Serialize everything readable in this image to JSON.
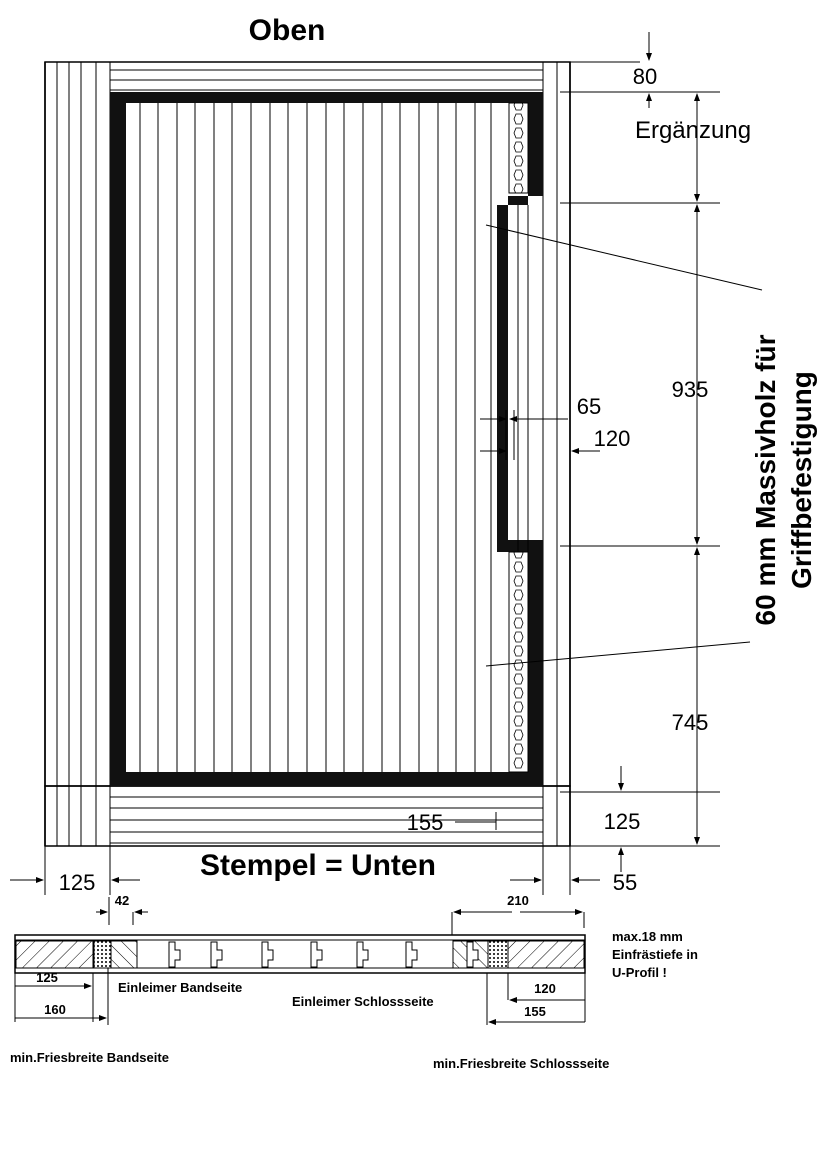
{
  "labels": {
    "top": "Oben",
    "bottom": "Stempel = Unten",
    "ergaenzung": "Ergänzung",
    "massivholz_line1": "60 mm Massivholz für",
    "massivholz_line2": "Griffbefestigung"
  },
  "dimensions": {
    "top_rail": "80",
    "height_upper": "935",
    "height_lower": "745",
    "bottom_rail": "125",
    "inner_width_65": "65",
    "inner_width_120": "120",
    "bottom_offset_155": "155",
    "left_stile": "125",
    "right_stile": "55"
  },
  "section": {
    "dim_42": "42",
    "dim_210": "210",
    "dim_125": "125",
    "dim_160": "160",
    "dim_120": "120",
    "dim_155": "155",
    "note_line1": "max.18 mm",
    "note_line2": "Einfrästiefe in",
    "note_line3": "U-Profil !",
    "glue_band": "Einleimer Bandseite",
    "glue_lock": "Einleimer Schlossseite",
    "min_band": "min.Friesbreite Bandseite",
    "min_lock": "min.Friesbreite Schlossseite"
  }
}
